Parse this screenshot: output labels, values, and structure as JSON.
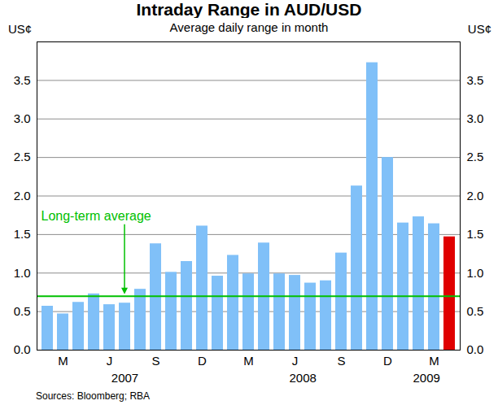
{
  "chart_data": {
    "type": "bar",
    "title": "Intraday Range in AUD/USD",
    "subtitle": "Average daily range in month",
    "y_label": "US¢",
    "categories": [
      null,
      "M",
      null,
      null,
      "J",
      null,
      null,
      "S",
      null,
      null,
      "D",
      null,
      null,
      "M",
      null,
      null,
      "J",
      null,
      null,
      "S",
      null,
      null,
      "D",
      null,
      null,
      "M",
      null
    ],
    "values": [
      0.57,
      0.47,
      0.62,
      0.73,
      0.59,
      0.61,
      0.79,
      1.38,
      1.01,
      1.15,
      1.61,
      0.96,
      1.23,
      0.99,
      1.39,
      0.99,
      0.97,
      0.87,
      0.9,
      1.26,
      2.13,
      3.73,
      2.5,
      1.65,
      1.73,
      1.64,
      1.47
    ],
    "colors": [
      "#80c0f8",
      "#80c0f8",
      "#80c0f8",
      "#80c0f8",
      "#80c0f8",
      "#80c0f8",
      "#80c0f8",
      "#80c0f8",
      "#80c0f8",
      "#80c0f8",
      "#80c0f8",
      "#80c0f8",
      "#80c0f8",
      "#80c0f8",
      "#80c0f8",
      "#80c0f8",
      "#80c0f8",
      "#80c0f8",
      "#80c0f8",
      "#80c0f8",
      "#80c0f8",
      "#80c0f8",
      "#80c0f8",
      "#80c0f8",
      "#80c0f8",
      "#80c0f8",
      "#e00000"
    ],
    "year_groups": [
      {
        "label": "2007",
        "months": 11
      },
      {
        "label": "2008",
        "months": 12
      },
      {
        "label": "2009",
        "months": 4
      }
    ],
    "reference_line": {
      "label": "Long-term average",
      "value": 0.7
    },
    "ylim": [
      0,
      4
    ],
    "yticks": [
      {
        "value": 0,
        "label": "0.0"
      },
      {
        "value": 0.5,
        "label": "0.5"
      },
      {
        "value": 1,
        "label": "1.0"
      },
      {
        "value": 1.5,
        "label": "1.5"
      },
      {
        "value": 2,
        "label": "2.0"
      },
      {
        "value": 2.5,
        "label": "2.5"
      },
      {
        "value": 3,
        "label": "3.0"
      },
      {
        "value": 3.5,
        "label": "3.5"
      }
    ],
    "grid": true,
    "source": "Sources: Bloomberg; RBA"
  }
}
